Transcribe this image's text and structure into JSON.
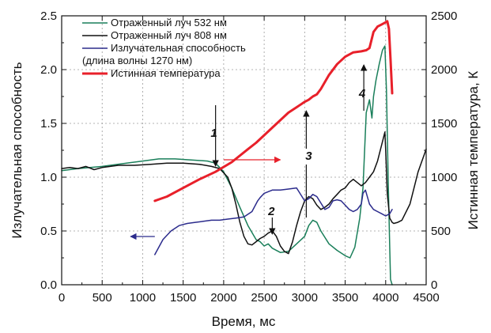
{
  "chart_data": {
    "type": "line",
    "xlabel": "Время, мс",
    "ylabel_left": "Излучательная способность",
    "ylabel_right": "Истинная температура, К",
    "xlim": [
      0,
      4500
    ],
    "ylim_left": [
      0,
      2.5
    ],
    "ylim_right": [
      0,
      2500
    ],
    "x_ticks": [
      "0",
      "500",
      "1000",
      "1500",
      "2000",
      "2500",
      "3000",
      "3500",
      "4000",
      "4500"
    ],
    "y_left_ticks": [
      "0.0",
      "0.5",
      "1.0",
      "1.5",
      "2.0",
      "2.5"
    ],
    "y_right_ticks": [
      "0",
      "500",
      "1000",
      "1500",
      "2000",
      "2500"
    ],
    "grid": true,
    "legend_position": "top-left",
    "legend": [
      {
        "label": "Отраженный луч 532 нм",
        "color": "#1a7f5a"
      },
      {
        "label": "Отраженный луч 808 нм",
        "color": "#111111"
      },
      {
        "label": "Излучательная способность",
        "color": "#2b2b8c"
      },
      {
        "label": "(длина волны 1270 нм)",
        "color": "none"
      },
      {
        "label": "Истинная температура",
        "color": "#e8202a"
      }
    ],
    "series": [
      {
        "name": "Отраженный луч 532 нм",
        "axis": "left",
        "color": "#1a7f5a",
        "x": [
          0,
          200,
          500,
          800,
          1000,
          1200,
          1400,
          1600,
          1800,
          1900,
          2000,
          2100,
          2200,
          2300,
          2400,
          2450,
          2500,
          2550,
          2600,
          2700,
          2800,
          2900,
          3000,
          3050,
          3100,
          3150,
          3200,
          3300,
          3400,
          3500,
          3560,
          3620,
          3680,
          3720,
          3760,
          3800,
          3830,
          3850,
          3880,
          3920,
          3960,
          3990,
          4010,
          4030,
          4050,
          4060,
          4080
        ],
        "y": [
          1.06,
          1.08,
          1.1,
          1.13,
          1.15,
          1.17,
          1.17,
          1.16,
          1.15,
          1.13,
          1.05,
          0.9,
          0.72,
          0.55,
          0.42,
          0.4,
          0.36,
          0.38,
          0.34,
          0.3,
          0.31,
          0.38,
          0.45,
          0.55,
          0.6,
          0.58,
          0.5,
          0.38,
          0.32,
          0.27,
          0.25,
          0.35,
          0.62,
          0.9,
          1.6,
          1.72,
          1.55,
          1.75,
          1.9,
          2.05,
          2.18,
          2.22,
          1.8,
          1.0,
          0.35,
          0.05,
          0.0
        ]
      },
      {
        "name": "Отраженный луч 808 нм",
        "axis": "left",
        "color": "#111111",
        "x": [
          0,
          100,
          200,
          300,
          400,
          500,
          700,
          900,
          1100,
          1300,
          1500,
          1700,
          1850,
          1950,
          2050,
          2100,
          2150,
          2200,
          2250,
          2300,
          2350,
          2400,
          2450,
          2500,
          2550,
          2600,
          2650,
          2700,
          2750,
          2800,
          2850,
          2900,
          2950,
          3000,
          3050,
          3100,
          3150,
          3200,
          3250,
          3300,
          3350,
          3400,
          3450,
          3500,
          3550,
          3600,
          3650,
          3700,
          3750,
          3800,
          3850,
          3900,
          3950,
          3990,
          4000,
          4020,
          4050,
          4080,
          4100,
          4150,
          4200,
          4300,
          4400,
          4500
        ],
        "y": [
          1.08,
          1.09,
          1.08,
          1.1,
          1.07,
          1.09,
          1.11,
          1.11,
          1.12,
          1.13,
          1.13,
          1.12,
          1.1,
          1.08,
          1.0,
          0.9,
          0.75,
          0.58,
          0.45,
          0.38,
          0.37,
          0.4,
          0.43,
          0.45,
          0.48,
          0.5,
          0.45,
          0.36,
          0.31,
          0.29,
          0.4,
          0.55,
          0.68,
          0.78,
          0.82,
          0.8,
          0.74,
          0.7,
          0.72,
          0.75,
          0.8,
          0.84,
          0.88,
          0.9,
          0.95,
          0.98,
          0.95,
          0.92,
          0.95,
          1.0,
          1.05,
          1.15,
          1.3,
          1.42,
          1.25,
          0.85,
          0.62,
          0.58,
          0.57,
          0.58,
          0.6,
          0.75,
          1.05,
          1.26
        ]
      },
      {
        "name": "Излучательная способность",
        "axis": "left",
        "color": "#2b2b8c",
        "x": [
          1150,
          1250,
          1350,
          1450,
          1550,
          1650,
          1750,
          1850,
          1950,
          2050,
          2150,
          2250,
          2350,
          2420,
          2450,
          2500,
          2600,
          2700,
          2800,
          2900,
          3000,
          3050,
          3100,
          3150,
          3200,
          3250,
          3300,
          3350,
          3400,
          3450,
          3500,
          3550,
          3600,
          3650,
          3700,
          3720,
          3750,
          3800,
          3850,
          3900,
          3950,
          4000,
          4050,
          4080
        ],
        "y": [
          0.28,
          0.42,
          0.5,
          0.55,
          0.57,
          0.58,
          0.59,
          0.6,
          0.6,
          0.61,
          0.62,
          0.63,
          0.68,
          0.78,
          0.81,
          0.85,
          0.88,
          0.88,
          0.89,
          0.9,
          0.78,
          0.8,
          0.84,
          0.82,
          0.76,
          0.7,
          0.72,
          0.78,
          0.79,
          0.78,
          0.74,
          0.7,
          0.68,
          0.7,
          0.75,
          0.85,
          0.88,
          0.75,
          0.7,
          0.68,
          0.66,
          0.64,
          0.66,
          0.7
        ]
      },
      {
        "name": "Истинная температура",
        "axis": "right",
        "color": "#e8202a",
        "x": [
          1150,
          1300,
          1500,
          1700,
          1900,
          2100,
          2300,
          2400,
          2500,
          2600,
          2700,
          2800,
          2900,
          3000,
          3050,
          3100,
          3150,
          3200,
          3300,
          3400,
          3500,
          3600,
          3700,
          3760,
          3800,
          3850,
          3900,
          3950,
          4000,
          4020,
          4040,
          4060,
          4080
        ],
        "y": [
          780,
          820,
          900,
          980,
          1050,
          1140,
          1260,
          1320,
          1390,
          1460,
          1530,
          1600,
          1650,
          1700,
          1720,
          1750,
          1770,
          1820,
          1950,
          2050,
          2120,
          2160,
          2170,
          2180,
          2200,
          2350,
          2400,
          2420,
          2440,
          2450,
          2380,
          2100,
          1780
        ]
      }
    ],
    "annotations": [
      "1",
      "2",
      "3",
      "4"
    ]
  }
}
